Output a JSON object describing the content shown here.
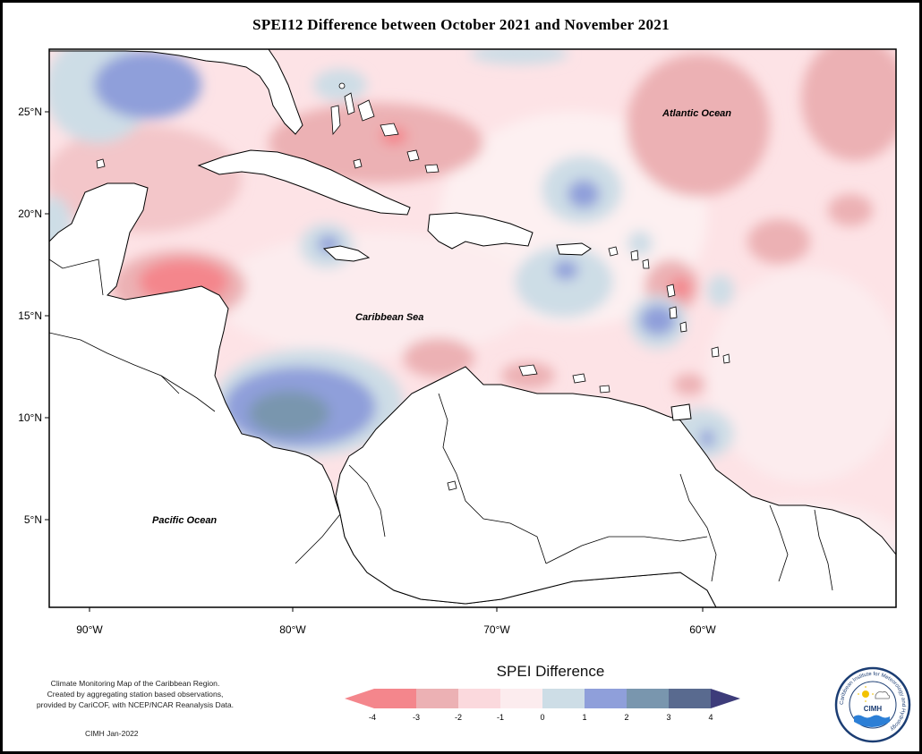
{
  "title": "SPEI12 Difference between October 2021 and November 2021",
  "map": {
    "lat_ticks": [
      "25°N",
      "20°N",
      "15°N",
      "10°N",
      "5°N"
    ],
    "lon_ticks": [
      "90°W",
      "80°W",
      "70°W",
      "60°W"
    ],
    "ocean_labels": {
      "atlantic": "Atlantic Ocean",
      "caribbean": "Caribbean Sea",
      "pacific": "Pacific Ocean"
    }
  },
  "legend": {
    "title": "SPEI Difference",
    "ticks": [
      "-4",
      "-3",
      "-2",
      "-1",
      "0",
      "1",
      "2",
      "3",
      "4"
    ],
    "colors": [
      "#f4868c",
      "#ecb1b4",
      "#fbd9dd",
      "#fcecee",
      "#cddde6",
      "#8f9fda",
      "#7996ae",
      "#596a8f"
    ],
    "arrow_left_color": "#f4868c",
    "arrow_right_color": "#3d3c7a"
  },
  "credits": {
    "line1": "Climate Monitoring Map of the Caribbean Region.",
    "line2": "Created by aggregating station based observations,",
    "line3": "provided by CariCOF, with NCEP/NCAR Reanalysis Data.",
    "date": "CIMH Jan-2022"
  },
  "logo": {
    "abbr": "CIMH",
    "ring_text": "Caribbean Institute for Meteorology and Hydrology"
  }
}
